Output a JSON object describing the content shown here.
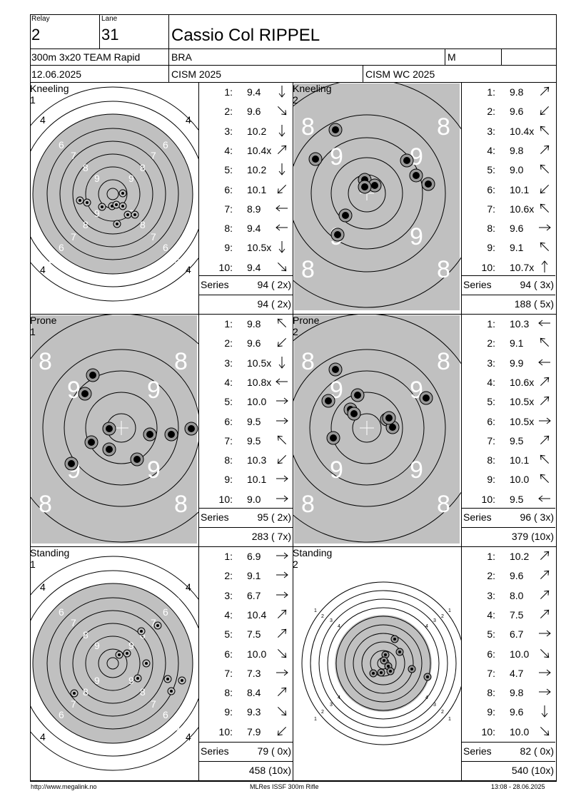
{
  "header": {
    "relay_label": "Relay",
    "relay": "2",
    "lane_label": "Lane",
    "lane": "31",
    "name": "Cassio Col RIPPEL",
    "event": "300m 3x20 TEAM Rapid",
    "nation": "BRA",
    "gender": "M",
    "date": "12.06.2025",
    "competition": "CISM 2025",
    "competition2": "CISM WC 2025"
  },
  "labels": {
    "series": "Series"
  },
  "panels": [
    {
      "title": "Kneeling 1",
      "shots": [
        {
          "no": "1:",
          "score": "9.4",
          "arrow": "down"
        },
        {
          "no": "2:",
          "score": "9.6",
          "arrow": "down-right"
        },
        {
          "no": "3:",
          "score": "10.2",
          "arrow": "down"
        },
        {
          "no": "4:",
          "score": "10.4x",
          "arrow": "up-right"
        },
        {
          "no": "5:",
          "score": "10.2",
          "arrow": "down"
        },
        {
          "no": "6:",
          "score": "10.1",
          "arrow": "down-left"
        },
        {
          "no": "7:",
          "score": "8.9",
          "arrow": "left"
        },
        {
          "no": "8:",
          "score": "9.4",
          "arrow": "left"
        },
        {
          "no": "9:",
          "score": "10.5x",
          "arrow": "down"
        },
        {
          "no": "10:",
          "score": "9.4",
          "arrow": "down-right"
        }
      ],
      "series": "94 ( 2x)",
      "total": "94 ( 2x)"
    },
    {
      "title": "Kneeling 2",
      "shots": [
        {
          "no": "1:",
          "score": "9.8",
          "arrow": "up-right"
        },
        {
          "no": "2:",
          "score": "9.6",
          "arrow": "down-left"
        },
        {
          "no": "3:",
          "score": "10.4x",
          "arrow": "up-left"
        },
        {
          "no": "4:",
          "score": "9.8",
          "arrow": "up-right"
        },
        {
          "no": "5:",
          "score": "9.0",
          "arrow": "up-left"
        },
        {
          "no": "6:",
          "score": "10.1",
          "arrow": "down-left"
        },
        {
          "no": "7:",
          "score": "10.6x",
          "arrow": "up-left"
        },
        {
          "no": "8:",
          "score": "9.6",
          "arrow": "right"
        },
        {
          "no": "9:",
          "score": "9.1",
          "arrow": "up-left"
        },
        {
          "no": "10:",
          "score": "10.7x",
          "arrow": "up"
        }
      ],
      "series": "94 ( 3x)",
      "total": "188 ( 5x)"
    },
    {
      "title": "Prone 1",
      "shots": [
        {
          "no": "1:",
          "score": "9.8",
          "arrow": "up-left"
        },
        {
          "no": "2:",
          "score": "9.6",
          "arrow": "down-left"
        },
        {
          "no": "3:",
          "score": "10.5x",
          "arrow": "down"
        },
        {
          "no": "4:",
          "score": "10.8x",
          "arrow": "left"
        },
        {
          "no": "5:",
          "score": "10.0",
          "arrow": "right"
        },
        {
          "no": "6:",
          "score": "9.5",
          "arrow": "right"
        },
        {
          "no": "7:",
          "score": "9.5",
          "arrow": "up-left"
        },
        {
          "no": "8:",
          "score": "10.3",
          "arrow": "down-left"
        },
        {
          "no": "9:",
          "score": "10.1",
          "arrow": "right"
        },
        {
          "no": "10:",
          "score": "9.0",
          "arrow": "right"
        }
      ],
      "series": "95 ( 2x)",
      "total": "283 ( 7x)"
    },
    {
      "title": "Prone 2",
      "shots": [
        {
          "no": "1:",
          "score": "10.3",
          "arrow": "left"
        },
        {
          "no": "2:",
          "score": "9.1",
          "arrow": "up-left"
        },
        {
          "no": "3:",
          "score": "9.9",
          "arrow": "left"
        },
        {
          "no": "4:",
          "score": "10.6x",
          "arrow": "up-right"
        },
        {
          "no": "5:",
          "score": "10.5x",
          "arrow": "up-right"
        },
        {
          "no": "6:",
          "score": "10.5x",
          "arrow": "right"
        },
        {
          "no": "7:",
          "score": "9.5",
          "arrow": "up-right"
        },
        {
          "no": "8:",
          "score": "10.1",
          "arrow": "up-left"
        },
        {
          "no": "9:",
          "score": "10.0",
          "arrow": "up-left"
        },
        {
          "no": "10:",
          "score": "9.5",
          "arrow": "left"
        }
      ],
      "series": "96 ( 3x)",
      "total": "379 (10x)"
    },
    {
      "title": "Standing 1",
      "shots": [
        {
          "no": "1:",
          "score": "6.9",
          "arrow": "right"
        },
        {
          "no": "2:",
          "score": "9.1",
          "arrow": "right"
        },
        {
          "no": "3:",
          "score": "6.7",
          "arrow": "right"
        },
        {
          "no": "4:",
          "score": "10.4",
          "arrow": "up-right"
        },
        {
          "no": "5:",
          "score": "7.5",
          "arrow": "up-right"
        },
        {
          "no": "6:",
          "score": "10.0",
          "arrow": "down-right"
        },
        {
          "no": "7:",
          "score": "7.3",
          "arrow": "right"
        },
        {
          "no": "8:",
          "score": "8.4",
          "arrow": "up-right"
        },
        {
          "no": "9:",
          "score": "9.3",
          "arrow": "down-right"
        },
        {
          "no": "10:",
          "score": "7.9",
          "arrow": "down-left"
        }
      ],
      "series": "79 ( 0x)",
      "total": "458 (10x)"
    },
    {
      "title": "Standing 2",
      "shots": [
        {
          "no": "1:",
          "score": "10.2",
          "arrow": "up-right"
        },
        {
          "no": "2:",
          "score": "9.6",
          "arrow": "up-right"
        },
        {
          "no": "3:",
          "score": "8.0",
          "arrow": "up-right"
        },
        {
          "no": "4:",
          "score": "7.5",
          "arrow": "up-right"
        },
        {
          "no": "5:",
          "score": "6.7",
          "arrow": "right"
        },
        {
          "no": "6:",
          "score": "10.0",
          "arrow": "down-right"
        },
        {
          "no": "7:",
          "score": "4.7",
          "arrow": "right"
        },
        {
          "no": "8:",
          "score": "9.8",
          "arrow": "right"
        },
        {
          "no": "9:",
          "score": "9.6",
          "arrow": "down"
        },
        {
          "no": "10:",
          "score": "10.0",
          "arrow": "down-right"
        }
      ],
      "series": "82 ( 0x)",
      "total": "540 (10x)"
    }
  ],
  "footer": {
    "left": "http://www.megalink.no",
    "center": "MLRes ISSF 300m Rifle",
    "right": "13:08 - 28.06.2025"
  }
}
